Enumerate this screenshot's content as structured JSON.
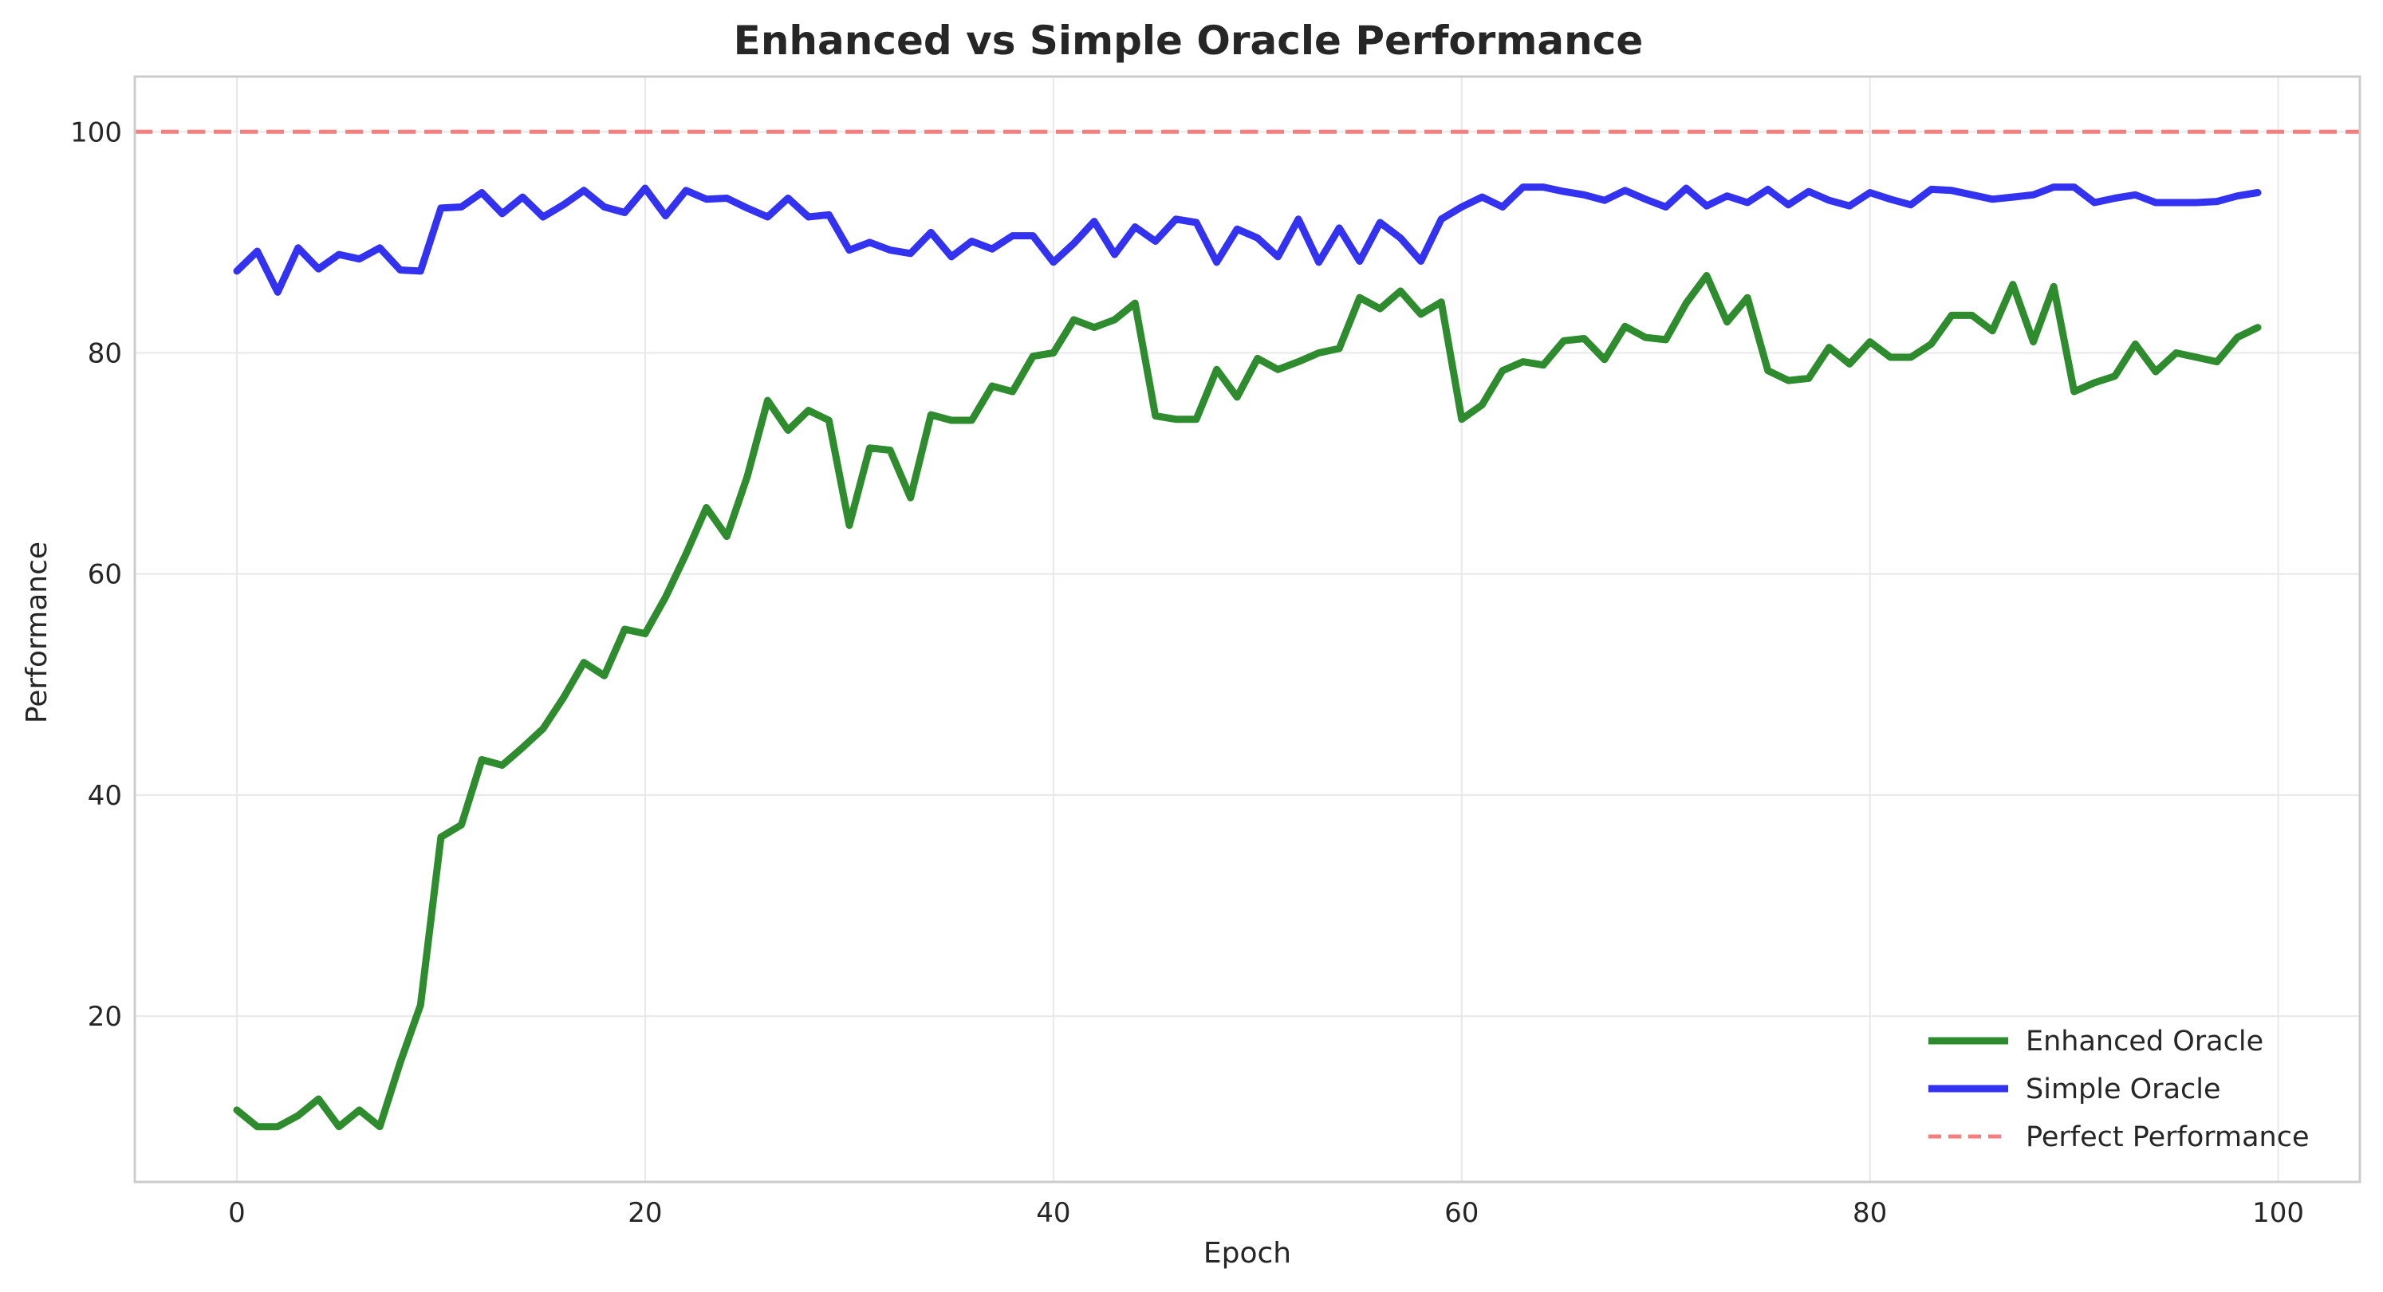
{
  "chart_data": {
    "type": "line",
    "title": "Enhanced vs Simple Oracle Performance",
    "xlabel": "Epoch",
    "ylabel": "Performance",
    "xlim": [
      -5,
      104
    ],
    "ylim": [
      5,
      105
    ],
    "xticks": [
      0,
      20,
      40,
      60,
      80,
      100
    ],
    "yticks": [
      20,
      40,
      60,
      80,
      100
    ],
    "grid": true,
    "legend_position": "bottom-right",
    "reference_line": {
      "name": "Perfect Performance",
      "y": 100,
      "color": "#f47f7f",
      "style": "dashed"
    },
    "series": [
      {
        "name": "Enhanced Oracle",
        "color": "#2e8b2e",
        "values": [
          11.5,
          10,
          10,
          11,
          12.5,
          10,
          11.5,
          10,
          15.8,
          21,
          36.2,
          37.3,
          43.2,
          42.7,
          44.3,
          46,
          48.8,
          52,
          50.8,
          55,
          54.6,
          57.9,
          61.8,
          66,
          63.4,
          68.8,
          75.7,
          73,
          74.8,
          73.9,
          64.4,
          71.4,
          71.2,
          66.9,
          74.4,
          73.9,
          73.9,
          77,
          76.5,
          79.7,
          80,
          83,
          82.3,
          83,
          84.5,
          74.3,
          74,
          74,
          78.5,
          76,
          79.5,
          78.5,
          79.2,
          80,
          80.4,
          85,
          84,
          85.6,
          83.5,
          84.6,
          74,
          75.3,
          78.4,
          79.2,
          78.9,
          81.1,
          81.3,
          79.4,
          82.4,
          81.4,
          81.2,
          84.5,
          87,
          82.8,
          85,
          78.4,
          77.5,
          77.7,
          80.5,
          79,
          81,
          79.6,
          79.6,
          80.8,
          83.4,
          83.4,
          82,
          86.2,
          81,
          86,
          76.5,
          77.3,
          77.9,
          80.8,
          78.3,
          80,
          79.6,
          79.2,
          81.4,
          82.3
        ]
      },
      {
        "name": "Simple Oracle",
        "color": "#3232f0",
        "values": [
          87.4,
          89.2,
          85.5,
          89.5,
          87.6,
          88.9,
          88.5,
          89.5,
          87.5,
          87.4,
          93.1,
          93.2,
          94.5,
          92.6,
          94.1,
          92.3,
          93.4,
          94.7,
          93.2,
          92.7,
          94.9,
          92.4,
          94.7,
          93.9,
          94,
          93.1,
          92.3,
          94,
          92.3,
          92.5,
          89.3,
          90,
          89.3,
          89,
          90.9,
          88.7,
          90.1,
          89.4,
          90.6,
          90.6,
          88.2,
          89.9,
          91.9,
          88.9,
          91.4,
          90.1,
          92.1,
          91.8,
          88.2,
          91.2,
          90.4,
          88.7,
          92.1,
          88.2,
          91.3,
          88.3,
          91.8,
          90.4,
          88.3,
          92.1,
          93.2,
          94.1,
          93.2,
          95,
          95,
          94.6,
          94.3,
          93.8,
          94.7,
          93.9,
          93.2,
          94.9,
          93.3,
          94.2,
          93.6,
          94.8,
          93.4,
          94.6,
          93.8,
          93.3,
          94.5,
          93.9,
          93.4,
          94.8,
          94.7,
          94.3,
          93.9,
          94.1,
          94.3,
          95,
          95,
          93.6,
          94,
          94.3,
          93.6,
          93.6,
          93.6,
          93.7,
          94.2,
          94.5
        ]
      }
    ],
    "legend": [
      "Enhanced Oracle",
      "Simple Oracle",
      "Perfect Performance"
    ]
  }
}
